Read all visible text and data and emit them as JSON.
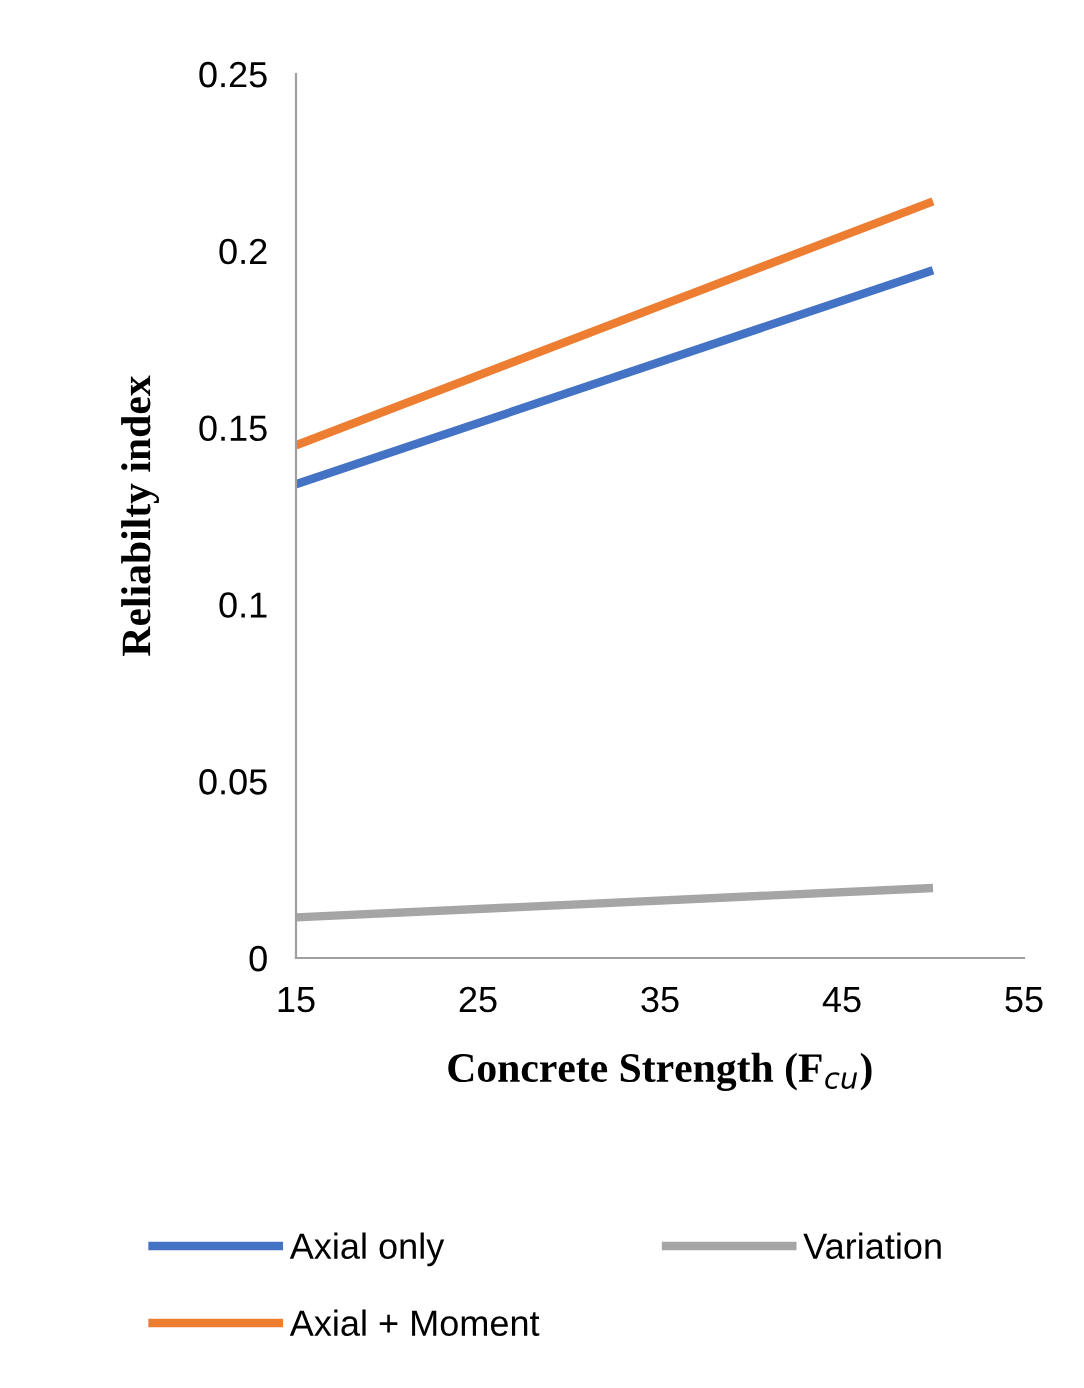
{
  "chart_data": {
    "type": "line",
    "xlabel": "Concrete Strength (F$_{cu}$)",
    "ylabel": "Reliabilty index",
    "x": [
      15,
      50
    ],
    "series": [
      {
        "name": "Axial only",
        "color": "#4472c4",
        "values": [
          0.134,
          0.1945
        ]
      },
      {
        "name": "Axial + Moment",
        "color": "#ed7d31",
        "values": [
          0.145,
          0.214
        ]
      },
      {
        "name": "Variation",
        "color": "#a5a5a5",
        "values": [
          0.0115,
          0.0198
        ]
      }
    ],
    "xlim": [
      15,
      55
    ],
    "xticks": [
      15,
      25,
      35,
      45,
      55
    ],
    "ylim": [
      0,
      0.25
    ],
    "yticks": [
      0,
      0.05,
      0.1,
      0.15,
      0.2,
      0.25
    ],
    "grid": false,
    "legend": "bottom",
    "marker": "none",
    "line_style": "solid"
  }
}
